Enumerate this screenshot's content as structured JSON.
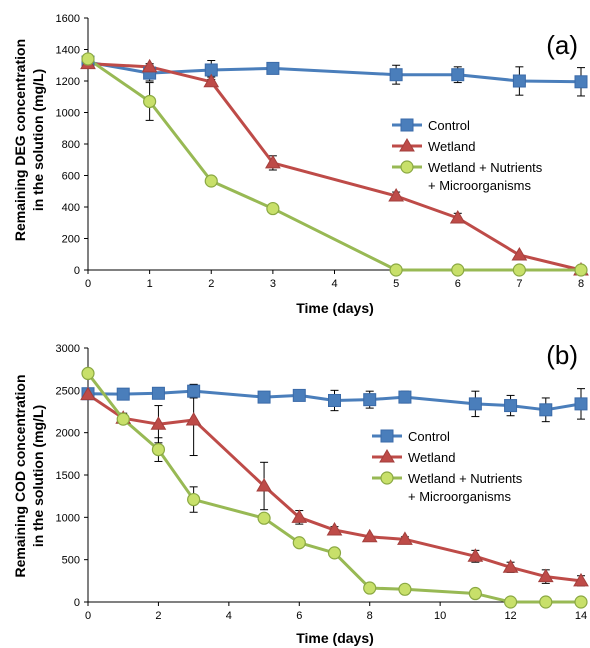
{
  "chart_data": [
    {
      "type": "line",
      "panel_label": "(a)",
      "xlabel": "Time (days)",
      "ylabel_line1": "Remaining DEG concentration",
      "ylabel_line2": "in the solution (mg/L)",
      "xlim": [
        0,
        8
      ],
      "ylim": [
        0,
        1600
      ],
      "xticks": [
        0,
        1,
        2,
        3,
        4,
        5,
        6,
        7,
        8
      ],
      "yticks": [
        0,
        200,
        400,
        600,
        800,
        1000,
        1200,
        1400,
        1600
      ],
      "grid": false,
      "legend_position": "right",
      "series": [
        {
          "name": "Control",
          "marker": "square",
          "color": "#4a7ebb",
          "x": [
            0,
            1,
            2,
            3,
            5,
            6,
            7,
            8
          ],
          "y": [
            1320,
            1250,
            1270,
            1280,
            1240,
            1240,
            1200,
            1195
          ],
          "err": [
            0,
            50,
            60,
            0,
            60,
            50,
            90,
            90
          ]
        },
        {
          "name": "Wetland",
          "marker": "triangle",
          "color": "#be4b48",
          "x": [
            0,
            1,
            2,
            3,
            5,
            6,
            7,
            8
          ],
          "y": [
            1310,
            1290,
            1195,
            680,
            470,
            330,
            95,
            0
          ],
          "err": [
            0,
            20,
            30,
            45,
            25,
            30,
            0,
            0
          ]
        },
        {
          "name": "Wetland + Nutrients",
          "name_line2": "+ Microorganisms",
          "marker": "circle",
          "color": "#98b954",
          "x": [
            0,
            1,
            2,
            3,
            5,
            6,
            7,
            8
          ],
          "y": [
            1340,
            1070,
            565,
            390,
            0,
            0,
            0,
            0
          ],
          "err": [
            0,
            120,
            0,
            0,
            0,
            0,
            0,
            0
          ]
        }
      ]
    },
    {
      "type": "line",
      "panel_label": "(b)",
      "xlabel": "Time (days)",
      "ylabel_line1": "Remaining COD concentration",
      "ylabel_line2": "in the solution (mg/L)",
      "xlim": [
        0,
        14
      ],
      "ylim": [
        0,
        3000
      ],
      "xticks": [
        0,
        2,
        4,
        6,
        8,
        10,
        12,
        14
      ],
      "yticks": [
        0,
        500,
        1000,
        1500,
        2000,
        2500,
        3000
      ],
      "grid": false,
      "legend_position": "right",
      "series": [
        {
          "name": "Control",
          "marker": "square",
          "color": "#4a7ebb",
          "x": [
            0,
            1,
            2,
            3,
            5,
            6,
            7,
            8,
            9,
            11,
            12,
            13,
            14
          ],
          "y": [
            2460,
            2455,
            2465,
            2490,
            2420,
            2440,
            2380,
            2390,
            2420,
            2340,
            2320,
            2270,
            2340
          ],
          "err": [
            0,
            0,
            60,
            80,
            0,
            50,
            120,
            100,
            70,
            150,
            120,
            140,
            180
          ]
        },
        {
          "name": "Wetland",
          "marker": "triangle",
          "color": "#be4b48",
          "x": [
            0,
            1,
            2,
            3,
            5,
            6,
            7,
            8,
            9,
            11,
            12,
            13,
            14
          ],
          "y": [
            2450,
            2170,
            2100,
            2150,
            1370,
            1000,
            850,
            770,
            740,
            540,
            410,
            300,
            250
          ],
          "err": [
            0,
            60,
            220,
            420,
            280,
            80,
            40,
            0,
            30,
            70,
            60,
            80,
            60
          ]
        },
        {
          "name": "Wetland + Nutrients",
          "name_line2": "+ Microorganisms",
          "marker": "circle",
          "color": "#98b954",
          "x": [
            0,
            1,
            2,
            3,
            5,
            6,
            7,
            8,
            9,
            11,
            12,
            13,
            14
          ],
          "y": [
            2700,
            2160,
            1800,
            1210,
            990,
            700,
            580,
            165,
            150,
            100,
            0,
            0,
            0
          ],
          "err": [
            0,
            40,
            140,
            150,
            40,
            0,
            40,
            0,
            0,
            0,
            0,
            0,
            0
          ]
        }
      ]
    }
  ]
}
